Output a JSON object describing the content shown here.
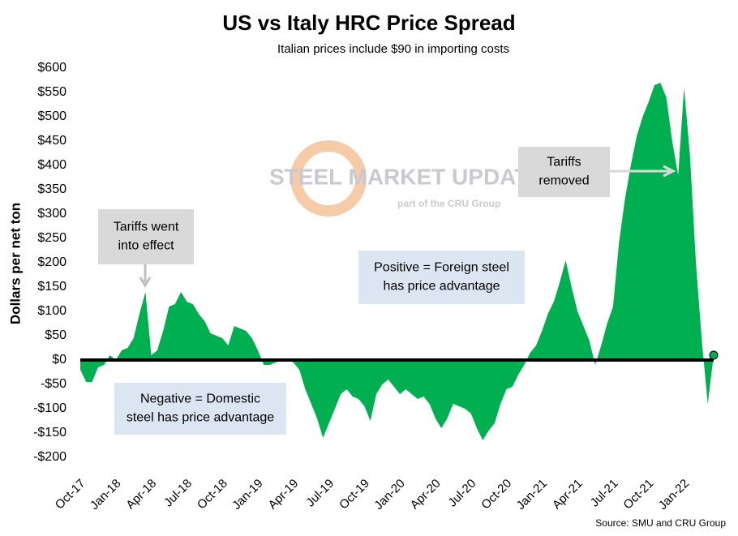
{
  "chart_data": {
    "type": "area",
    "title": "US vs Italy HRC Price Spread",
    "subtitle": "Italian prices include $90 in importing costs",
    "y_label": "Dollars per net ton",
    "source": "Source: SMU and CRU Group",
    "watermark": [
      "STEEL MARKET UPDATE",
      "part of the CRU Group"
    ],
    "annotations": [
      {
        "text": [
          "Tariffs went",
          "into effect"
        ]
      },
      {
        "text": [
          "Tariffs",
          "removed"
        ]
      },
      {
        "text": [
          "Positive = Foreign steel",
          "has price advantage"
        ]
      },
      {
        "text": [
          "Negative = Domestic",
          "steel has price advantage"
        ]
      }
    ],
    "color": "#00b050",
    "categories": [
      "Oct-17",
      null,
      null,
      null,
      null,
      null,
      "Jan-18",
      null,
      null,
      null,
      null,
      null,
      "Apr-18",
      null,
      null,
      null,
      null,
      null,
      "Jul-18",
      null,
      null,
      null,
      null,
      null,
      "Oct-18",
      null,
      null,
      null,
      null,
      null,
      "Jan-19",
      null,
      null,
      null,
      null,
      null,
      "Apr-19",
      null,
      null,
      null,
      null,
      null,
      "Jul-19",
      null,
      null,
      null,
      null,
      null,
      "Oct-19",
      null,
      null,
      null,
      null,
      null,
      "Jan-20",
      null,
      null,
      null,
      null,
      null,
      "Apr-20",
      null,
      null,
      null,
      null,
      null,
      "Jul-20",
      null,
      null,
      null,
      null,
      null,
      "Oct-20",
      null,
      null,
      null,
      null,
      null,
      "Jan-21",
      null,
      null,
      null,
      null,
      null,
      "Apr-21",
      null,
      null,
      null,
      null,
      null,
      "Jul-21",
      null,
      null,
      null,
      null,
      null,
      "Oct-21",
      null,
      null,
      null,
      null,
      null,
      "Jan-22",
      null,
      null,
      null,
      null,
      null
    ],
    "values": [
      -20,
      -45,
      -45,
      -15,
      -10,
      10,
      0,
      20,
      25,
      45,
      95,
      140,
      10,
      20,
      60,
      110,
      115,
      140,
      120,
      115,
      95,
      80,
      55,
      50,
      45,
      30,
      70,
      65,
      60,
      45,
      20,
      -10,
      -10,
      -5,
      0,
      0,
      -5,
      -20,
      -60,
      -90,
      -120,
      -160,
      -130,
      -100,
      -70,
      -60,
      -75,
      -80,
      -95,
      -125,
      -70,
      -50,
      -40,
      -55,
      -70,
      -60,
      -70,
      -80,
      -75,
      -90,
      -120,
      -140,
      -120,
      -90,
      -95,
      -100,
      -110,
      -140,
      -165,
      -145,
      -130,
      -90,
      -60,
      -55,
      -30,
      -10,
      15,
      30,
      60,
      95,
      120,
      160,
      205,
      150,
      100,
      70,
      40,
      -10,
      30,
      75,
      110,
      240,
      330,
      400,
      460,
      500,
      530,
      565,
      570,
      540,
      450,
      380,
      560,
      420,
      200,
      40,
      -90,
      10
    ],
    "ylim": [
      -200,
      600
    ],
    "yticks": [
      {
        "value": -200,
        "label": "-$200"
      },
      {
        "value": -150,
        "label": "-$150"
      },
      {
        "value": -100,
        "label": "-$100"
      },
      {
        "value": -50,
        "label": "-$50"
      },
      {
        "value": 0,
        "label": "$0"
      },
      {
        "value": 50,
        "label": "$50"
      },
      {
        "value": 100,
        "label": "$100"
      },
      {
        "value": 150,
        "label": "$150"
      },
      {
        "value": 200,
        "label": "$200"
      },
      {
        "value": 250,
        "label": "$250"
      },
      {
        "value": 300,
        "label": "$300"
      },
      {
        "value": 350,
        "label": "$350"
      },
      {
        "value": 400,
        "label": "$400"
      },
      {
        "value": 450,
        "label": "$450"
      },
      {
        "value": 500,
        "label": "$500"
      },
      {
        "value": 550,
        "label": "$550"
      },
      {
        "value": 600,
        "label": "$600"
      }
    ]
  }
}
